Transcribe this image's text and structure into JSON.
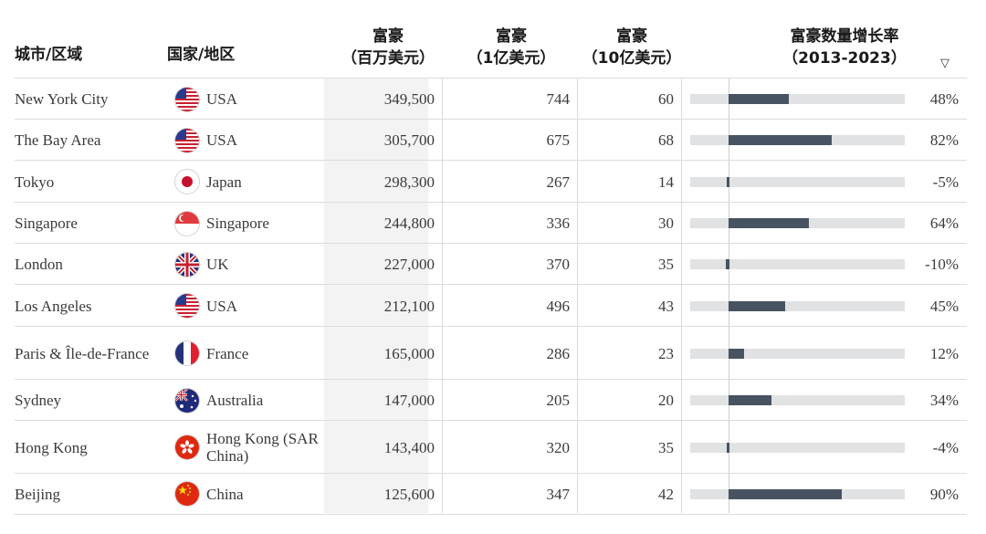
{
  "header": {
    "city": "城市/区域",
    "country": "国家/地区",
    "v1_line1": "富豪",
    "v1_line2": "（百万美元）",
    "v2_line1": "富豪",
    "v2_line2": "（1亿美元）",
    "v3_line1": "富豪",
    "v3_line2": "（10亿美元）",
    "growth_line1": "富豪数量增长率",
    "growth_line2": "（2013-2023）",
    "sort_icon": "▽"
  },
  "colors": {
    "bar": "#475360",
    "track": "#e1e2e4",
    "highlight_column": "#f3f3f3"
  },
  "chart_data": {
    "type": "table",
    "columns": [
      "城市/区域",
      "国家/地区",
      "富豪（百万美元）",
      "富豪（1亿美元）",
      "富豪（10亿美元）",
      "富豪数量增长率（2013-2023）"
    ],
    "rows": [
      {
        "city": "New York City",
        "country": "USA",
        "flag": "us-flag-icon",
        "v1": "349,500",
        "v2": "744",
        "v3": "60",
        "growth": 48,
        "growth_label": "48%"
      },
      {
        "city": "The Bay Area",
        "country": "USA",
        "flag": "us-flag-icon",
        "v1": "305,700",
        "v2": "675",
        "v3": "68",
        "growth": 82,
        "growth_label": "82%"
      },
      {
        "city": "Tokyo",
        "country": "Japan",
        "flag": "japan-flag-icon",
        "v1": "298,300",
        "v2": "267",
        "v3": "14",
        "growth": -5,
        "growth_label": "-5%"
      },
      {
        "city": "Singapore",
        "country": "Singapore",
        "flag": "singapore-flag-icon",
        "v1": "244,800",
        "v2": "336",
        "v3": "30",
        "growth": 64,
        "growth_label": "64%"
      },
      {
        "city": "London",
        "country": "UK",
        "flag": "uk-flag-icon",
        "v1": "227,000",
        "v2": "370",
        "v3": "35",
        "growth": -10,
        "growth_label": "-10%"
      },
      {
        "city": "Los Angeles",
        "country": "USA",
        "flag": "us-flag-icon",
        "v1": "212,100",
        "v2": "496",
        "v3": "43",
        "growth": 45,
        "growth_label": "45%"
      },
      {
        "city": "Paris & Île-de-France",
        "country": "France",
        "flag": "france-flag-icon",
        "v1": "165,000",
        "v2": "286",
        "v3": "23",
        "growth": 12,
        "growth_label": "12%"
      },
      {
        "city": "Sydney",
        "country": "Australia",
        "flag": "australia-flag-icon",
        "v1": "147,000",
        "v2": "205",
        "v3": "20",
        "growth": 34,
        "growth_label": "34%"
      },
      {
        "city": "Hong Kong",
        "country": "Hong Kong (SAR China)",
        "flag": "hong-kong-flag-icon",
        "v1": "143,400",
        "v2": "320",
        "v3": "35",
        "growth": -4,
        "growth_label": "-4%"
      },
      {
        "city": "Beijing",
        "country": "China",
        "flag": "china-flag-icon",
        "v1": "125,600",
        "v2": "347",
        "v3": "42",
        "growth": 90,
        "growth_label": "90%"
      }
    ]
  }
}
